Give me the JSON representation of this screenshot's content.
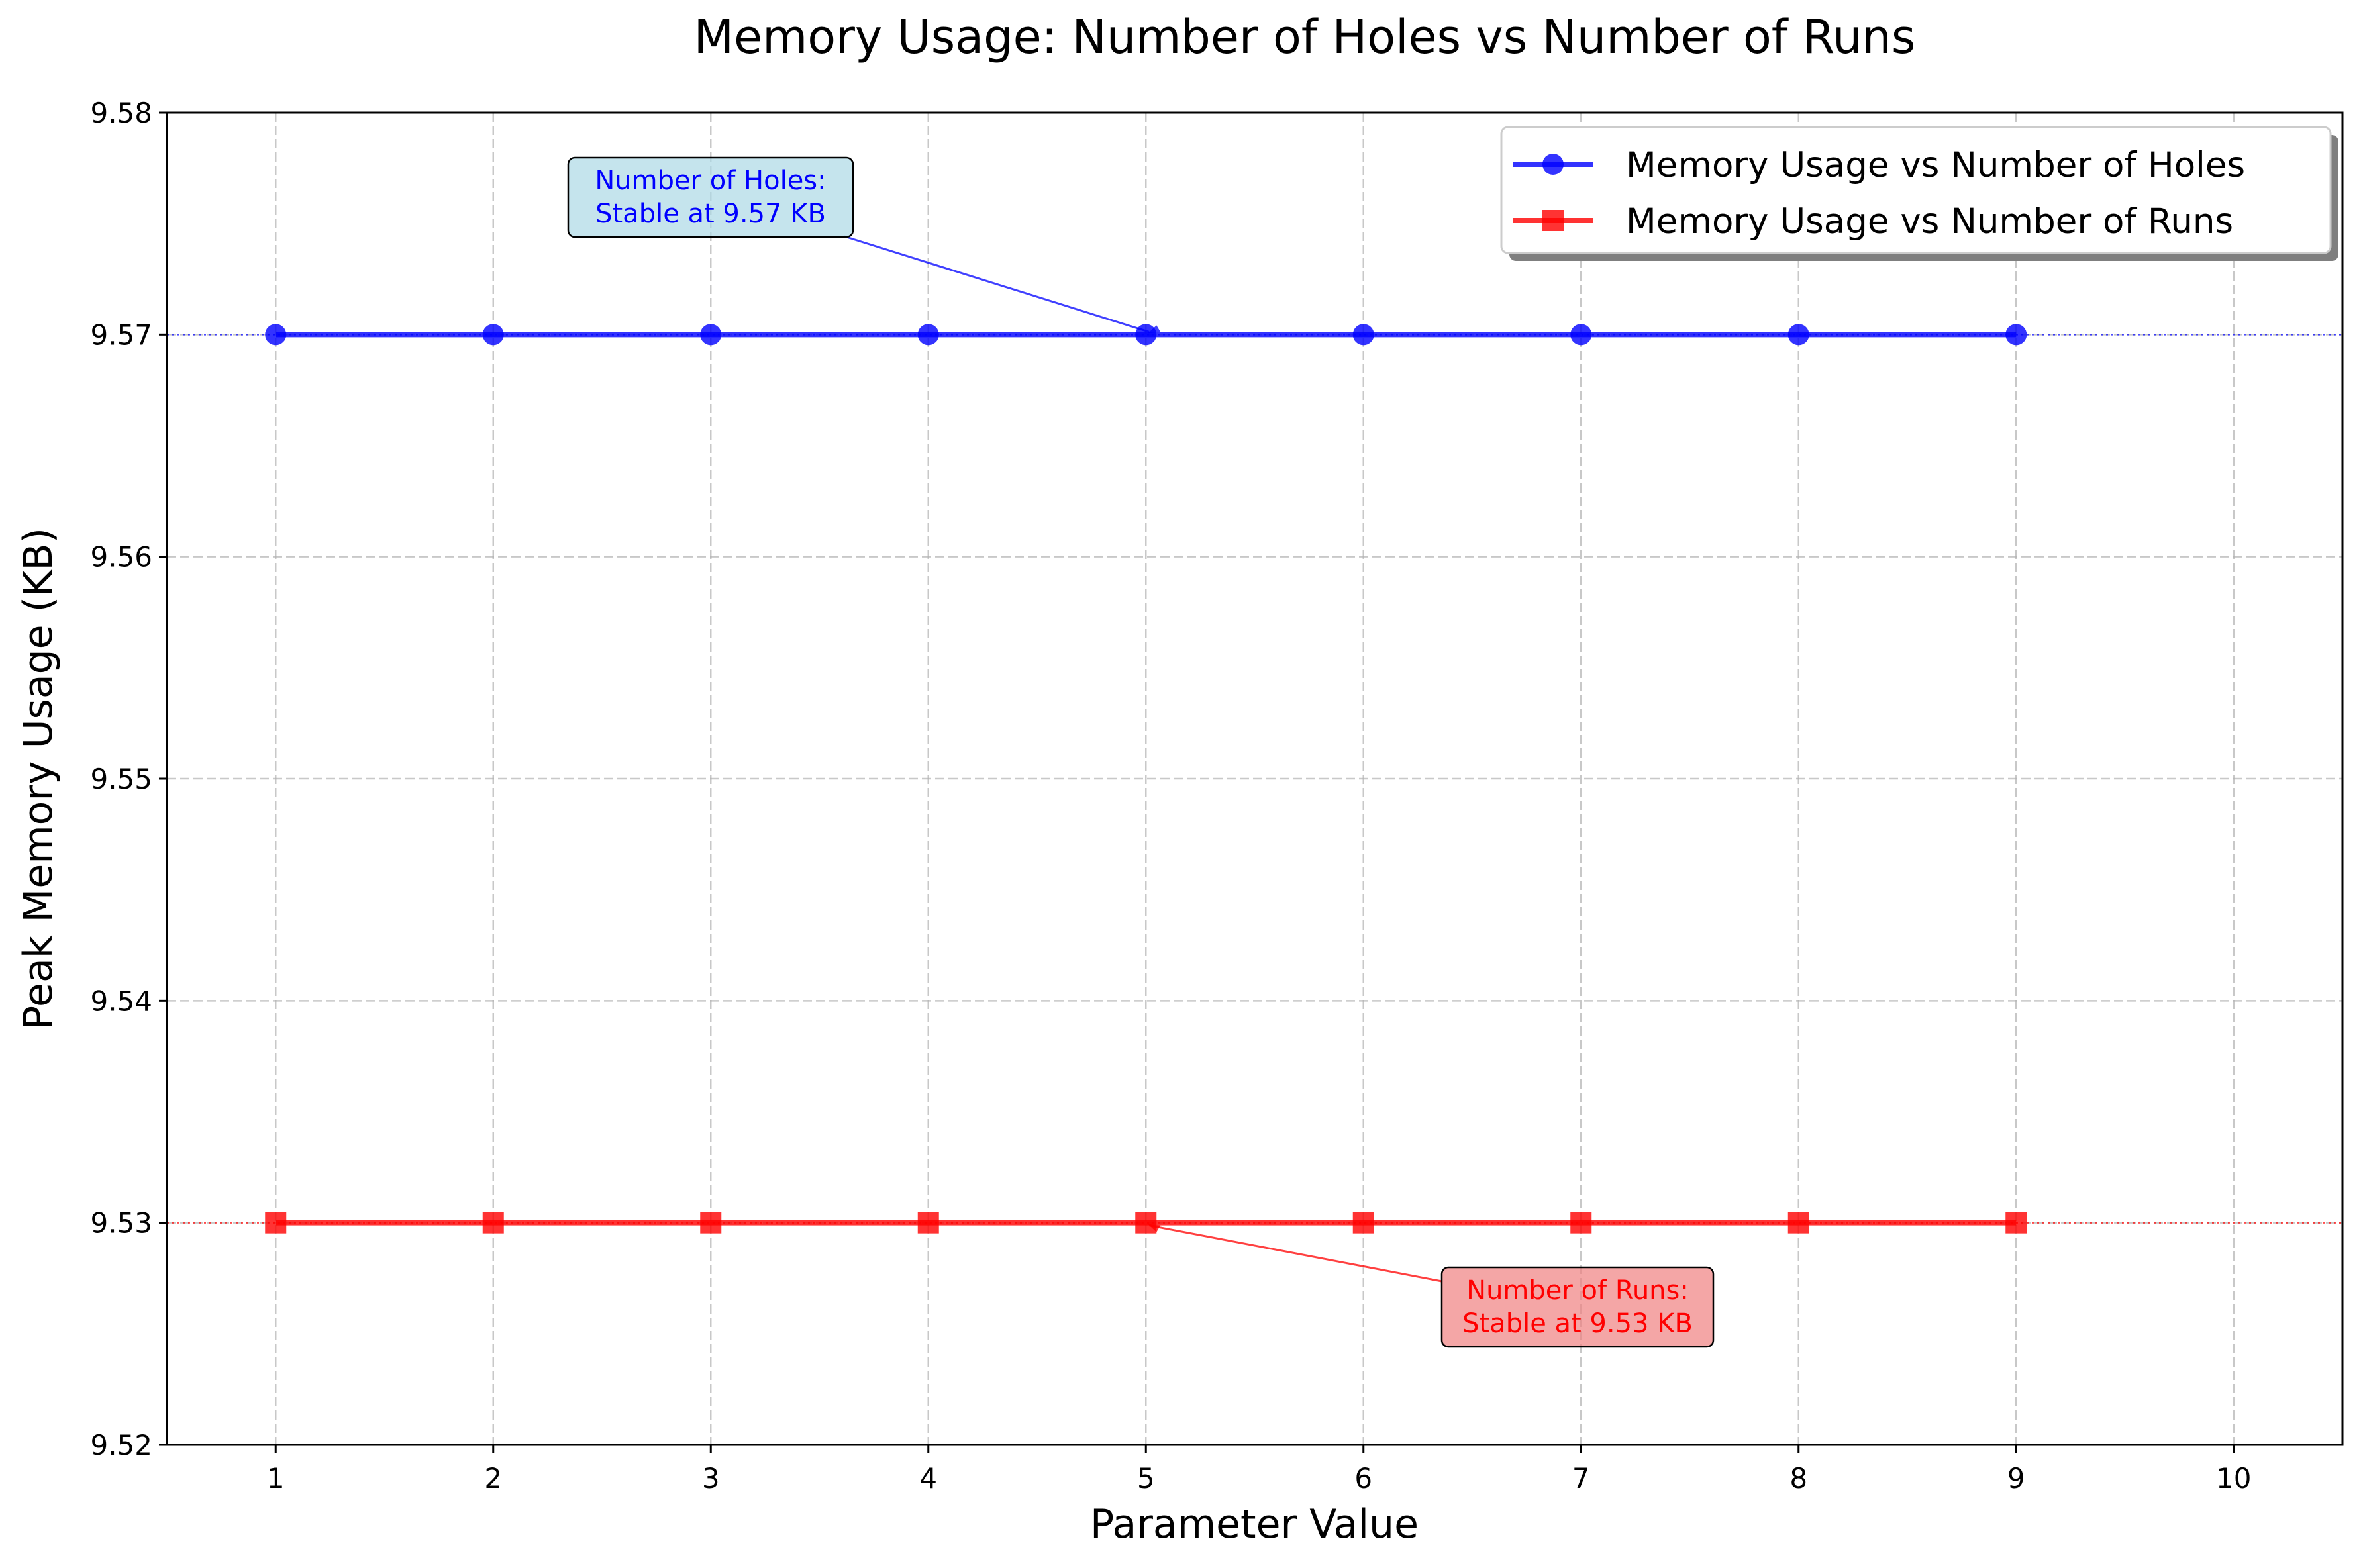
{
  "chart_data": {
    "type": "line",
    "title": "Memory Usage: Number of Holes vs Number of Runs",
    "xlabel": "Parameter Value",
    "ylabel": "Peak Memory Usage (KB)",
    "xlim": [
      0.5,
      10.5
    ],
    "ylim": [
      9.52,
      9.58
    ],
    "xticks": [
      1,
      2,
      3,
      4,
      5,
      6,
      7,
      8,
      9,
      10
    ],
    "yticks": [
      9.52,
      9.53,
      9.54,
      9.55,
      9.56,
      9.57,
      9.58
    ],
    "xtick_labels": [
      "1",
      "2",
      "3",
      "4",
      "5",
      "6",
      "7",
      "8",
      "9",
      "10"
    ],
    "ytick_labels": [
      "9.52",
      "9.53",
      "9.54",
      "9.55",
      "9.56",
      "9.57",
      "9.58"
    ],
    "grid": true,
    "legend_position": "upper right",
    "series": [
      {
        "name": "Memory Usage vs Number of Holes",
        "color": "#0000ff",
        "marker": "circle",
        "x": [
          1,
          2,
          3,
          4,
          5,
          6,
          7,
          8,
          9
        ],
        "y": [
          9.57,
          9.57,
          9.57,
          9.57,
          9.57,
          9.57,
          9.57,
          9.57,
          9.57
        ]
      },
      {
        "name": "Memory Usage vs Number of Runs",
        "color": "#ff0000",
        "marker": "square",
        "x": [
          1,
          2,
          3,
          4,
          5,
          6,
          7,
          8,
          9
        ],
        "y": [
          9.53,
          9.53,
          9.53,
          9.53,
          9.53,
          9.53,
          9.53,
          9.53,
          9.53
        ]
      }
    ],
    "reference_lines": [
      {
        "y": 9.57,
        "color": "#0000ff",
        "style": "dotted"
      },
      {
        "y": 9.53,
        "color": "#ff0000",
        "style": "dotted"
      }
    ],
    "annotations": [
      {
        "lines": [
          "Number of Holes:",
          "Stable at 9.57 KB"
        ],
        "point": [
          5,
          9.57
        ],
        "text_color": "#0000ff",
        "box_color": "#add8e6"
      },
      {
        "lines": [
          "Number of Runs:",
          "Stable at 9.53 KB"
        ],
        "point": [
          5,
          9.53
        ],
        "text_color": "#ff0000",
        "box_color": "#f08080"
      }
    ]
  }
}
